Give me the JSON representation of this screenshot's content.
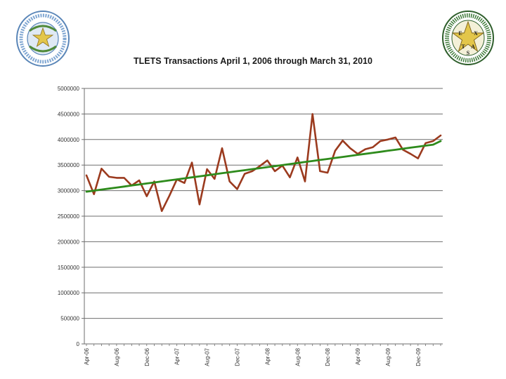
{
  "slide": {
    "seal_left": {
      "icon": "texas-state-seal-icon",
      "color": "#6f9bc9"
    },
    "seal_right": {
      "icon": "texas-dps-badge-icon",
      "color": "#3f7a3a",
      "star_color": "#e3c64a"
    }
  },
  "chart_data": {
    "type": "line",
    "title": "TLETS Transactions April 1, 2006 through March 31, 2010",
    "xlabel": "",
    "ylabel": "",
    "ylim": [
      0,
      5000000
    ],
    "y_ticks": [
      "0",
      "500000",
      "1000000",
      "1500000",
      "2000000",
      "2500000",
      "3000000",
      "3500000",
      "4000000",
      "4500000",
      "5000000"
    ],
    "x_tick_labels": [
      "Apr-06",
      "Aug-06",
      "Dec-06",
      "Apr-07",
      "Aug-07",
      "Dec-07",
      "Apr-08",
      "Aug-08",
      "Dec-08",
      "Apr-09",
      "Aug-09",
      "Dec-09"
    ],
    "x": [
      "Apr-06",
      "May-06",
      "Jun-06",
      "Jul-06",
      "Aug-06",
      "Sep-06",
      "Oct-06",
      "Nov-06",
      "Dec-06",
      "Jan-07",
      "Feb-07",
      "Mar-07",
      "Apr-07",
      "May-07",
      "Jun-07",
      "Jul-07",
      "Aug-07",
      "Sep-07",
      "Oct-07",
      "Nov-07",
      "Dec-07",
      "Jan-08",
      "Feb-08",
      "Mar-08",
      "Apr-08",
      "May-08",
      "Jun-08",
      "Jul-08",
      "Aug-08",
      "Sep-08",
      "Oct-08",
      "Nov-08",
      "Dec-08",
      "Jan-09",
      "Feb-09",
      "Mar-09",
      "Apr-09",
      "May-09",
      "Jun-09",
      "Jul-09",
      "Aug-09",
      "Sep-09",
      "Oct-09",
      "Nov-09",
      "Dec-09",
      "Jan-10",
      "Feb-10",
      "Mar-10"
    ],
    "grid": true,
    "legend": "none",
    "series": [
      {
        "color": "#9b3a1e",
        "values": [
          3300000,
          2930000,
          3430000,
          3270000,
          3250000,
          3250000,
          3100000,
          3200000,
          2890000,
          3180000,
          2600000,
          2900000,
          3220000,
          3150000,
          3550000,
          2730000,
          3420000,
          3230000,
          3830000,
          3180000,
          3030000,
          3330000,
          3380000,
          3480000,
          3590000,
          3380000,
          3490000,
          3260000,
          3650000,
          3180000,
          4500000,
          3380000,
          3350000,
          3780000,
          3980000,
          3830000,
          3720000,
          3810000,
          3850000,
          3970000,
          4000000,
          4040000,
          3800000,
          3720000,
          3630000,
          3930000,
          3970000,
          4080000
        ]
      },
      {
        "color": "#2e8b1c",
        "values": [
          2980000,
          3000000,
          3020000,
          3040000,
          3060000,
          3080000,
          3100000,
          3120000,
          3140000,
          3160000,
          3180000,
          3200000,
          3220000,
          3240000,
          3260000,
          3280000,
          3300000,
          3320000,
          3340000,
          3360000,
          3380000,
          3400000,
          3420000,
          3440000,
          3460000,
          3480000,
          3500000,
          3520000,
          3540000,
          3560000,
          3580000,
          3600000,
          3620000,
          3640000,
          3660000,
          3680000,
          3700000,
          3720000,
          3740000,
          3760000,
          3780000,
          3800000,
          3820000,
          3840000,
          3860000,
          3880000,
          3900000,
          3970000
        ]
      }
    ]
  }
}
